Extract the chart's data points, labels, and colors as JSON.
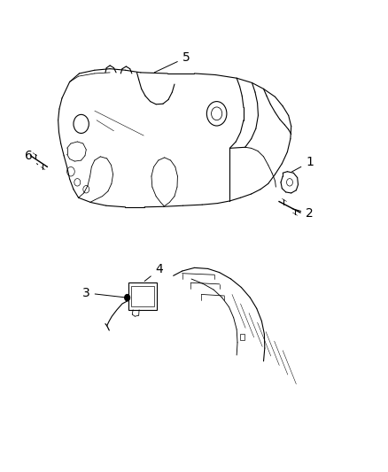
{
  "bg_color": "#ffffff",
  "line_color": "#000000",
  "figsize": [
    4.39,
    5.33
  ],
  "dpi": 100,
  "label_fontsize": 10,
  "line_width": 0.8
}
